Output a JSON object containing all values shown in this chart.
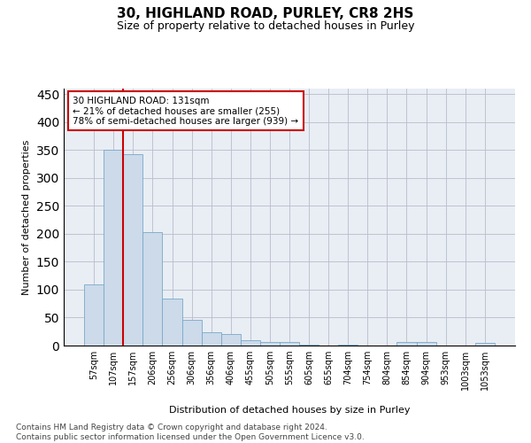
{
  "title1": "30, HIGHLAND ROAD, PURLEY, CR8 2HS",
  "title2": "Size of property relative to detached houses in Purley",
  "xlabel": "Distribution of detached houses by size in Purley",
  "ylabel": "Number of detached properties",
  "footnote": "Contains HM Land Registry data © Crown copyright and database right 2024.\nContains public sector information licensed under the Open Government Licence v3.0.",
  "bin_labels": [
    "57sqm",
    "107sqm",
    "157sqm",
    "206sqm",
    "256sqm",
    "306sqm",
    "356sqm",
    "406sqm",
    "455sqm",
    "505sqm",
    "555sqm",
    "605sqm",
    "655sqm",
    "704sqm",
    "754sqm",
    "804sqm",
    "854sqm",
    "904sqm",
    "953sqm",
    "1003sqm",
    "1053sqm"
  ],
  "bar_values": [
    110,
    350,
    343,
    203,
    84,
    46,
    24,
    20,
    9,
    7,
    6,
    1,
    0,
    1,
    0,
    0,
    7,
    7,
    0,
    0,
    4
  ],
  "bar_color": "#ccdaea",
  "bar_edgecolor": "#7aa8c8",
  "subject_line_color": "#cc0000",
  "annotation_text": "30 HIGHLAND ROAD: 131sqm\n← 21% of detached houses are smaller (255)\n78% of semi-detached houses are larger (939) →",
  "annotation_box_facecolor": "#ffffff",
  "annotation_box_edgecolor": "#cc0000",
  "ylim": [
    0,
    460
  ],
  "yticks": [
    0,
    50,
    100,
    150,
    200,
    250,
    300,
    350,
    400,
    450
  ],
  "title1_fontsize": 11,
  "title2_fontsize": 9,
  "axis_fontsize": 8,
  "tick_fontsize": 7,
  "footnote_fontsize": 6.5,
  "background_color": "#e8eef4"
}
